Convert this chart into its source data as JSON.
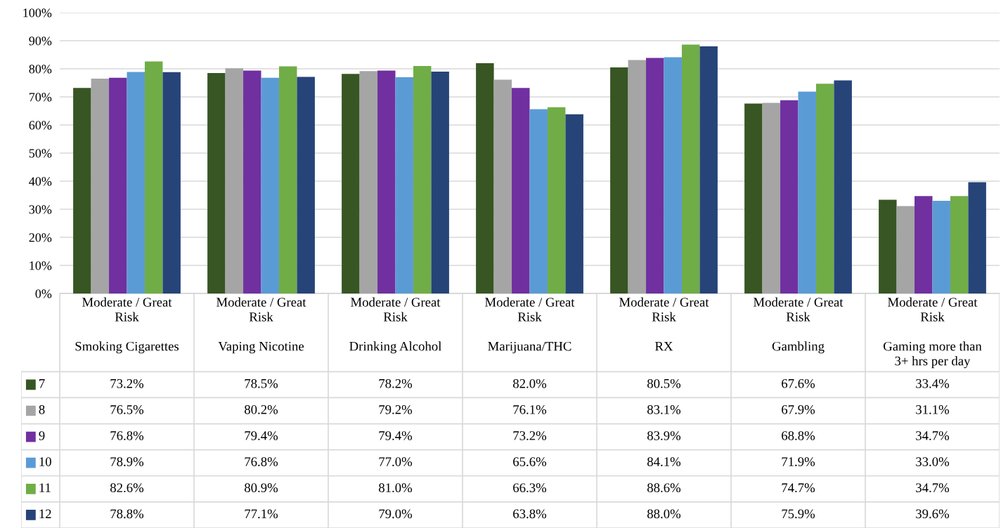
{
  "chart_data": {
    "type": "bar",
    "categories": [
      "Moderate / Great\nRisk\n\nSmoking Cigarettes",
      "Moderate / Great\nRisk\n\nVaping Nicotine",
      "Moderate / Great\nRisk\n\nDrinking Alcohol",
      "Moderate / Great\nRisk\n\nMarijuana/THC",
      "Moderate / Great\nRisk\n\nRX",
      "Moderate / Great\nRisk\n\nGambling",
      "Moderate / Great\nRisk\n\nGaming more than\n3+ hrs per day"
    ],
    "series": [
      {
        "name": "7",
        "color": "#375623",
        "values": [
          73.2,
          78.5,
          78.2,
          82.0,
          80.5,
          67.6,
          33.4
        ],
        "value_labels": [
          "73.2%",
          "78.5%",
          "78.2%",
          "82.0%",
          "80.5%",
          "67.6%",
          "33.4%"
        ]
      },
      {
        "name": "8",
        "color": "#a5a5a5",
        "values": [
          76.5,
          80.2,
          79.2,
          76.1,
          83.1,
          67.9,
          31.1
        ],
        "value_labels": [
          "76.5%",
          "80.2%",
          "79.2%",
          "76.1%",
          "83.1%",
          "67.9%",
          "31.1%"
        ]
      },
      {
        "name": "9",
        "color": "#7030a0",
        "values": [
          76.8,
          79.4,
          79.4,
          73.2,
          83.9,
          68.8,
          34.7
        ],
        "value_labels": [
          "76.8%",
          "79.4%",
          "79.4%",
          "73.2%",
          "83.9%",
          "68.8%",
          "34.7%"
        ]
      },
      {
        "name": "10",
        "color": "#5b9bd5",
        "values": [
          78.9,
          76.8,
          77.0,
          65.6,
          84.1,
          71.9,
          33.0
        ],
        "value_labels": [
          "78.9%",
          "76.8%",
          "77.0%",
          "65.6%",
          "84.1%",
          "71.9%",
          "33.0%"
        ]
      },
      {
        "name": "11",
        "color": "#70ad47",
        "values": [
          82.6,
          80.9,
          81.0,
          66.3,
          88.6,
          74.7,
          34.7
        ],
        "value_labels": [
          "82.6%",
          "80.9%",
          "81.0%",
          "66.3%",
          "88.6%",
          "74.7%",
          "34.7%"
        ]
      },
      {
        "name": "12",
        "color": "#264478",
        "values": [
          78.8,
          77.1,
          79.0,
          63.8,
          88.0,
          75.9,
          39.6
        ],
        "value_labels": [
          "78.8%",
          "77.1%",
          "79.0%",
          "63.8%",
          "88.0%",
          "75.9%",
          "39.6%"
        ]
      }
    ],
    "ylim": [
      0,
      100
    ],
    "yticks": [
      {
        "value": 0,
        "label": "0%"
      },
      {
        "value": 10,
        "label": "10%"
      },
      {
        "value": 20,
        "label": "20%"
      },
      {
        "value": 30,
        "label": "30%"
      },
      {
        "value": 40,
        "label": "40%"
      },
      {
        "value": 50,
        "label": "50%"
      },
      {
        "value": 60,
        "label": "60%"
      },
      {
        "value": 70,
        "label": "70%"
      },
      {
        "value": 80,
        "label": "80%"
      },
      {
        "value": 90,
        "label": "90%"
      },
      {
        "value": 100,
        "label": "100%"
      }
    ],
    "grid": "y",
    "legend": "bottom left"
  }
}
